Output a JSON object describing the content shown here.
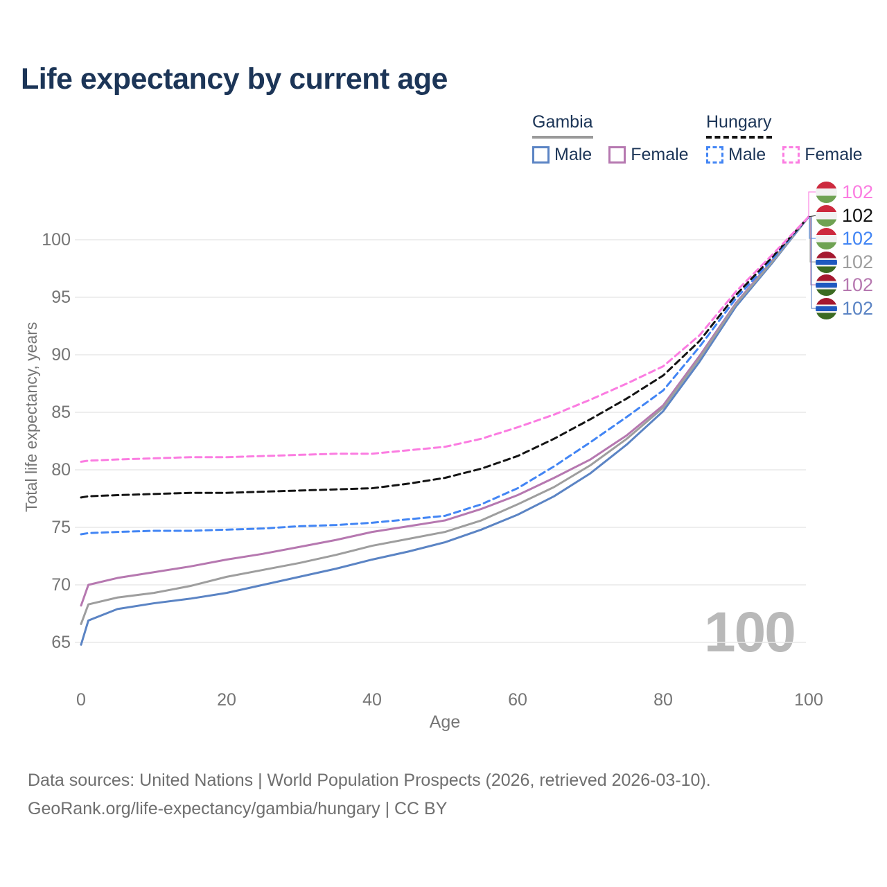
{
  "title": "Life expectancy by current age",
  "watermark": "100",
  "legend": {
    "groups": [
      {
        "name": "Gambia",
        "line_style": "solid",
        "underline_color": "#9a9a9a",
        "items": [
          {
            "label": "Male",
            "color": "#5b84c4",
            "dashed": false
          },
          {
            "label": "Female",
            "color": "#b678b0",
            "dashed": false
          }
        ]
      },
      {
        "name": "Hungary",
        "line_style": "dashed",
        "underline_color": "#141414",
        "items": [
          {
            "label": "Male",
            "color": "#4285f4",
            "dashed": true
          },
          {
            "label": "Female",
            "color": "#fb7ce1",
            "dashed": true
          }
        ]
      }
    ]
  },
  "footer": {
    "line1": "Data sources: United Nations | World Population Prospects (2026, retrieved 2026-03-10).",
    "line2": "GeoRank.org/life-expectancy/gambia/hungary | CC BY"
  },
  "chart_data": {
    "type": "line",
    "title": "Life expectancy by current age",
    "xlabel": "Age",
    "ylabel": "Total life expectancy, years",
    "xlim": [
      0,
      100
    ],
    "ylim": [
      63,
      104
    ],
    "x_ticks": [
      0,
      20,
      40,
      60,
      80,
      100
    ],
    "y_ticks": [
      65,
      70,
      75,
      80,
      85,
      90,
      95,
      100
    ],
    "grid": "horizontal",
    "legend_position": "top-right",
    "x": [
      0,
      1,
      5,
      10,
      15,
      20,
      25,
      30,
      35,
      40,
      45,
      50,
      55,
      60,
      65,
      70,
      75,
      80,
      85,
      90,
      95,
      100
    ],
    "series": [
      {
        "id": "hungary-female",
        "country": "Hungary",
        "group": "Female",
        "color": "#fb7ce1",
        "dashed": true,
        "flag": "hungary",
        "end_label": "102",
        "values": [
          80.7,
          80.8,
          80.9,
          81.0,
          81.1,
          81.1,
          81.2,
          81.3,
          81.4,
          81.4,
          81.7,
          82.0,
          82.7,
          83.7,
          84.8,
          86.1,
          87.5,
          89.0,
          91.7,
          95.5,
          98.7,
          102
        ]
      },
      {
        "id": "hungary-both",
        "country": "Hungary",
        "group": "Both sexes",
        "color": "#141414",
        "dashed": true,
        "flag": "hungary",
        "end_label": "102",
        "values": [
          77.6,
          77.7,
          77.8,
          77.9,
          78.0,
          78.0,
          78.1,
          78.2,
          78.3,
          78.4,
          78.8,
          79.3,
          80.1,
          81.2,
          82.7,
          84.4,
          86.2,
          88.2,
          91.2,
          95.2,
          98.5,
          102
        ]
      },
      {
        "id": "hungary-male",
        "country": "Hungary",
        "group": "Male",
        "color": "#4285f4",
        "dashed": true,
        "flag": "hungary",
        "end_label": "102",
        "values": [
          74.4,
          74.5,
          74.6,
          74.7,
          74.7,
          74.8,
          74.9,
          75.1,
          75.2,
          75.4,
          75.7,
          76.0,
          77.0,
          78.4,
          80.3,
          82.4,
          84.6,
          86.9,
          90.7,
          94.9,
          98.3,
          102
        ]
      },
      {
        "id": "gambia-both",
        "country": "Gambia",
        "group": "Both sexes",
        "color": "#9e9e9e",
        "dashed": false,
        "flag": "gambia",
        "end_label": "102",
        "values": [
          66.6,
          68.3,
          68.9,
          69.3,
          69.9,
          70.7,
          71.3,
          71.9,
          72.6,
          73.4,
          74.0,
          74.6,
          75.6,
          77.0,
          78.5,
          80.4,
          82.7,
          85.4,
          89.7,
          94.4,
          98.1,
          102
        ]
      },
      {
        "id": "gambia-female",
        "country": "Gambia",
        "group": "Female",
        "color": "#b678b0",
        "dashed": false,
        "flag": "gambia",
        "end_label": "102",
        "values": [
          68.2,
          70.0,
          70.6,
          71.1,
          71.6,
          72.2,
          72.7,
          73.3,
          73.9,
          74.6,
          75.1,
          75.6,
          76.6,
          77.8,
          79.3,
          80.9,
          83.0,
          85.6,
          89.9,
          94.5,
          98.2,
          102
        ]
      },
      {
        "id": "gambia-male",
        "country": "Gambia",
        "group": "Male",
        "color": "#5b84c4",
        "dashed": false,
        "flag": "gambia",
        "end_label": "102",
        "values": [
          64.8,
          66.9,
          67.9,
          68.4,
          68.8,
          69.3,
          70.0,
          70.7,
          71.4,
          72.2,
          72.9,
          73.7,
          74.8,
          76.1,
          77.7,
          79.7,
          82.2,
          85.1,
          89.4,
          94.2,
          98.0,
          102
        ]
      }
    ]
  }
}
